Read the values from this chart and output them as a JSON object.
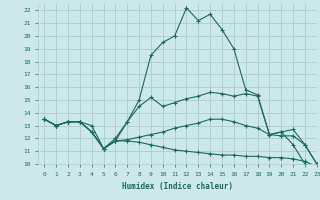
{
  "xlabel": "Humidex (Indice chaleur)",
  "bg_color": "#cce8e8",
  "grid_color": "#aacccc",
  "line_color": "#1a6b5a",
  "xlim": [
    -0.5,
    23
  ],
  "ylim": [
    10,
    22.5
  ],
  "xticks": [
    0,
    1,
    2,
    3,
    4,
    5,
    6,
    7,
    8,
    9,
    10,
    11,
    12,
    13,
    14,
    15,
    16,
    17,
    18,
    19,
    20,
    21,
    22,
    23
  ],
  "yticks": [
    10,
    11,
    12,
    13,
    14,
    15,
    16,
    17,
    18,
    19,
    20,
    21,
    22
  ],
  "lines": [
    {
      "x": [
        0,
        1,
        2,
        3,
        4,
        5,
        6,
        7,
        8,
        9,
        10,
        11,
        12,
        13,
        14,
        15,
        16,
        17,
        18,
        19,
        20,
        21,
        22,
        23
      ],
      "y": [
        13.5,
        13,
        13.3,
        13.3,
        13,
        11.2,
        12,
        13.3,
        15,
        18.5,
        19.5,
        20,
        22.2,
        21.2,
        21.7,
        20.5,
        19,
        15.8,
        15.4,
        12.3,
        12.5,
        11.5,
        10,
        9.8
      ]
    },
    {
      "x": [
        0,
        1,
        2,
        3,
        4,
        5,
        6,
        7,
        8,
        9,
        10,
        11,
        12,
        13,
        14,
        15,
        16,
        17,
        18,
        19,
        20,
        21,
        22,
        23
      ],
      "y": [
        13.5,
        13,
        13.3,
        13.3,
        12.5,
        11.2,
        11.8,
        13.3,
        14.5,
        15.2,
        14.5,
        14.8,
        15.1,
        15.3,
        15.6,
        15.5,
        15.3,
        15.5,
        15.3,
        12.3,
        12.5,
        12.7,
        11.5,
        10
      ]
    },
    {
      "x": [
        0,
        1,
        2,
        3,
        4,
        5,
        6,
        7,
        8,
        9,
        10,
        11,
        12,
        13,
        14,
        15,
        16,
        17,
        18,
        19,
        20,
        21,
        22,
        23
      ],
      "y": [
        13.5,
        13,
        13.3,
        13.3,
        12.5,
        11.2,
        11.8,
        11.9,
        12.1,
        12.3,
        12.5,
        12.8,
        13.0,
        13.2,
        13.5,
        13.5,
        13.3,
        13.0,
        12.8,
        12.3,
        12.2,
        12.2,
        11.5,
        10
      ]
    },
    {
      "x": [
        0,
        1,
        2,
        3,
        4,
        5,
        6,
        7,
        8,
        9,
        10,
        11,
        12,
        13,
        14,
        15,
        16,
        17,
        18,
        19,
        20,
        21,
        22,
        23
      ],
      "y": [
        13.5,
        13,
        13.3,
        13.3,
        12.5,
        11.2,
        11.8,
        11.8,
        11.7,
        11.5,
        11.3,
        11.1,
        11.0,
        10.9,
        10.8,
        10.7,
        10.7,
        10.6,
        10.6,
        10.5,
        10.5,
        10.4,
        10.2,
        9.8
      ]
    }
  ]
}
